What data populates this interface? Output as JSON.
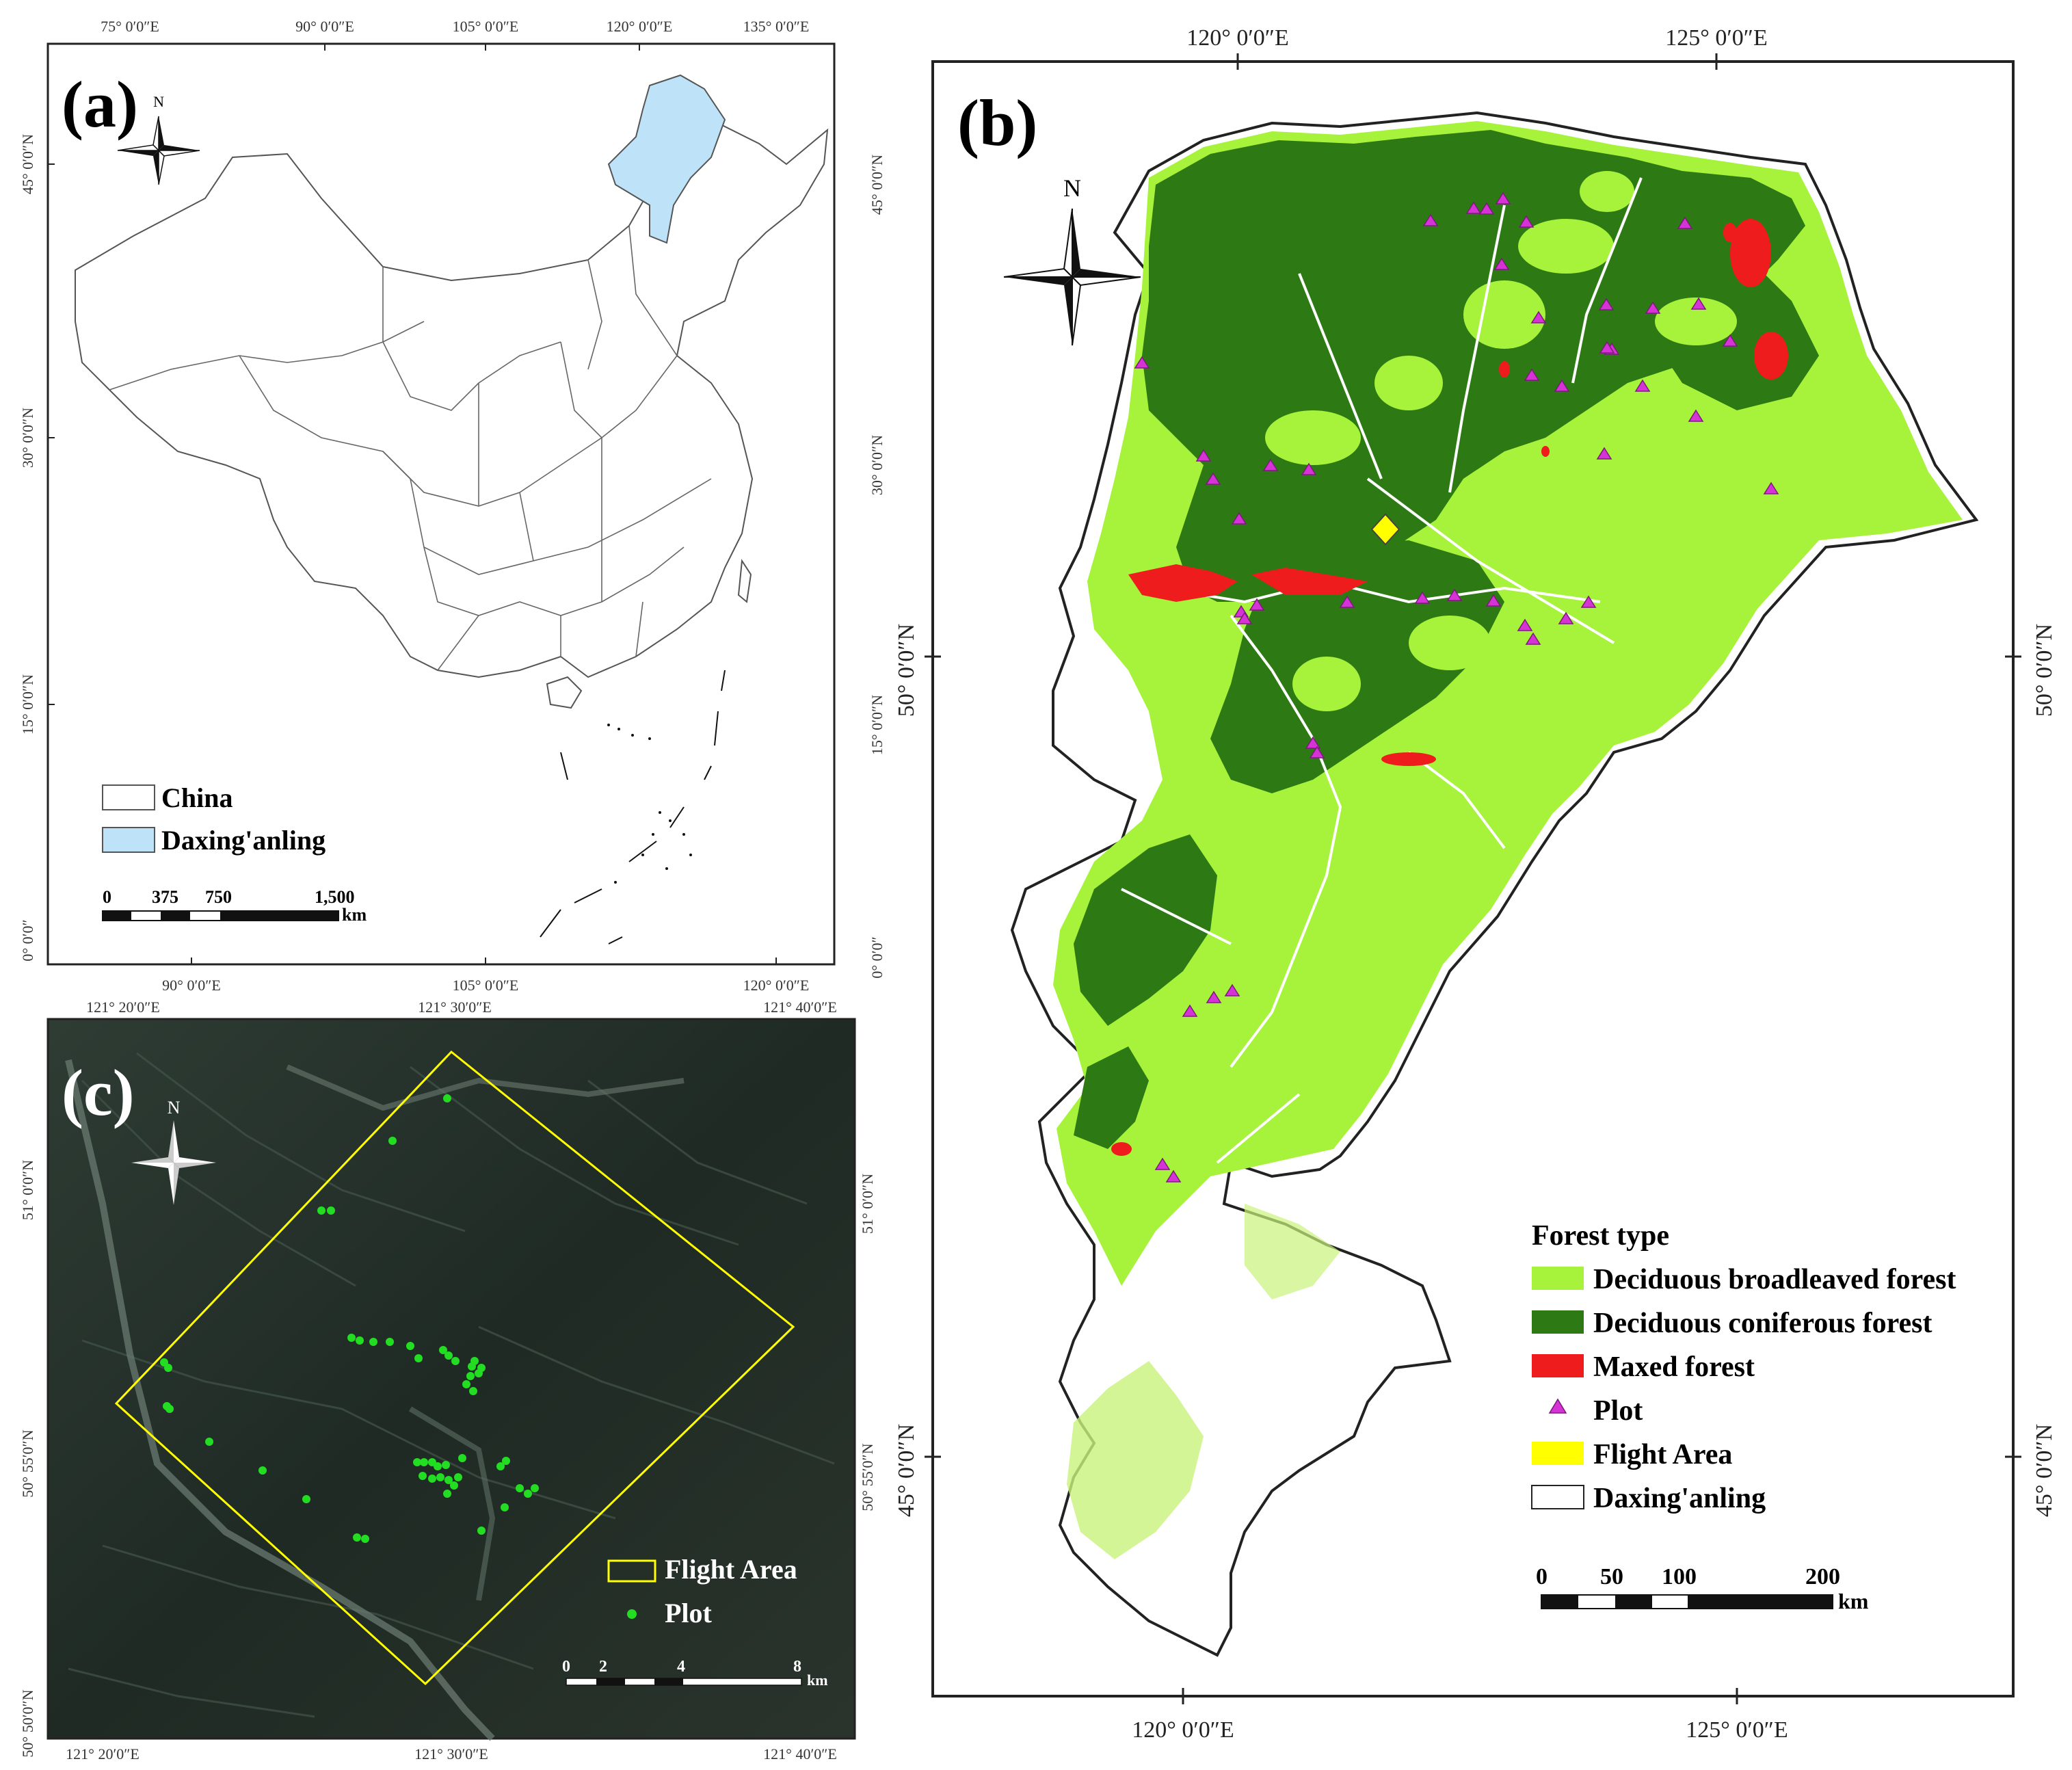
{
  "panel_a": {
    "label": "(a)",
    "north": "N",
    "top_ticks": [
      "75° 0′0″E",
      "90° 0′0″E",
      "105° 0′0″E",
      "120° 0′0″E",
      "135° 0′0″E"
    ],
    "bottom_ticks": [
      "90° 0′0″E",
      "105° 0′0″E",
      "120° 0′0″E"
    ],
    "left_ticks": [
      "45° 0′0″N",
      "30° 0′0″N",
      "15° 0′0″N",
      "0° 0′0″"
    ],
    "right_ticks": [
      "45° 0′0″N",
      "30° 0′0″N",
      "15° 0′0″N",
      "0° 0′0″"
    ],
    "legend": [
      {
        "label": "China",
        "color": "#ffffff"
      },
      {
        "label": "Daxing'anling",
        "color": "#bee3f8"
      }
    ],
    "scale": {
      "ticks": [
        "0",
        "375",
        "750",
        "1,500"
      ],
      "unit": "km"
    }
  },
  "panel_b": {
    "label": "(b)",
    "north": "N",
    "top_ticks": [
      "120° 0′0″E",
      "125° 0′0″E"
    ],
    "bottom_ticks": [
      "120° 0′0″E",
      "125° 0′0″E"
    ],
    "right_ticks": [
      "50° 0′0″N",
      "45° 0′0″N"
    ],
    "left_ticks": [
      "50° 0′0″N",
      "45° 0′0″N"
    ],
    "legend_title": "Forest type",
    "legend": [
      {
        "label": "Deciduous broadleaved forest",
        "color": "#a7f23a"
      },
      {
        "label": "Deciduous coniferous forest",
        "color": "#2d7a15"
      },
      {
        "label": "Maxed forest",
        "color": "#ee1c1c"
      },
      {
        "label": "Plot",
        "color": "#d633d6"
      },
      {
        "label": "Flight Area",
        "color": "#ffff00"
      },
      {
        "label": "Daxing'anling",
        "color": "#ffffff"
      }
    ],
    "scale": {
      "ticks": [
        "0",
        "50",
        "100",
        "200"
      ],
      "unit": "km"
    }
  },
  "panel_c": {
    "label": "(c)",
    "north": "N",
    "top_ticks": [
      "121° 20′0″E",
      "121° 30′0″E",
      "121° 40′0″E"
    ],
    "bottom_ticks": [
      "121° 20′0″E",
      "121° 30′0″E",
      "121° 40′0″E"
    ],
    "left_ticks": [
      "51° 0′0″N",
      "50° 55′0″N",
      "50° 50′0″N"
    ],
    "right_ticks": [
      "51° 0′0″N",
      "50° 55′0″N"
    ],
    "legend": [
      {
        "label": "Flight Area",
        "color": "#ffff00"
      },
      {
        "label": "Plot",
        "color": "#22dd22"
      }
    ],
    "scale": {
      "ticks": [
        "0",
        "2",
        "4",
        "8"
      ],
      "unit": "km"
    }
  }
}
